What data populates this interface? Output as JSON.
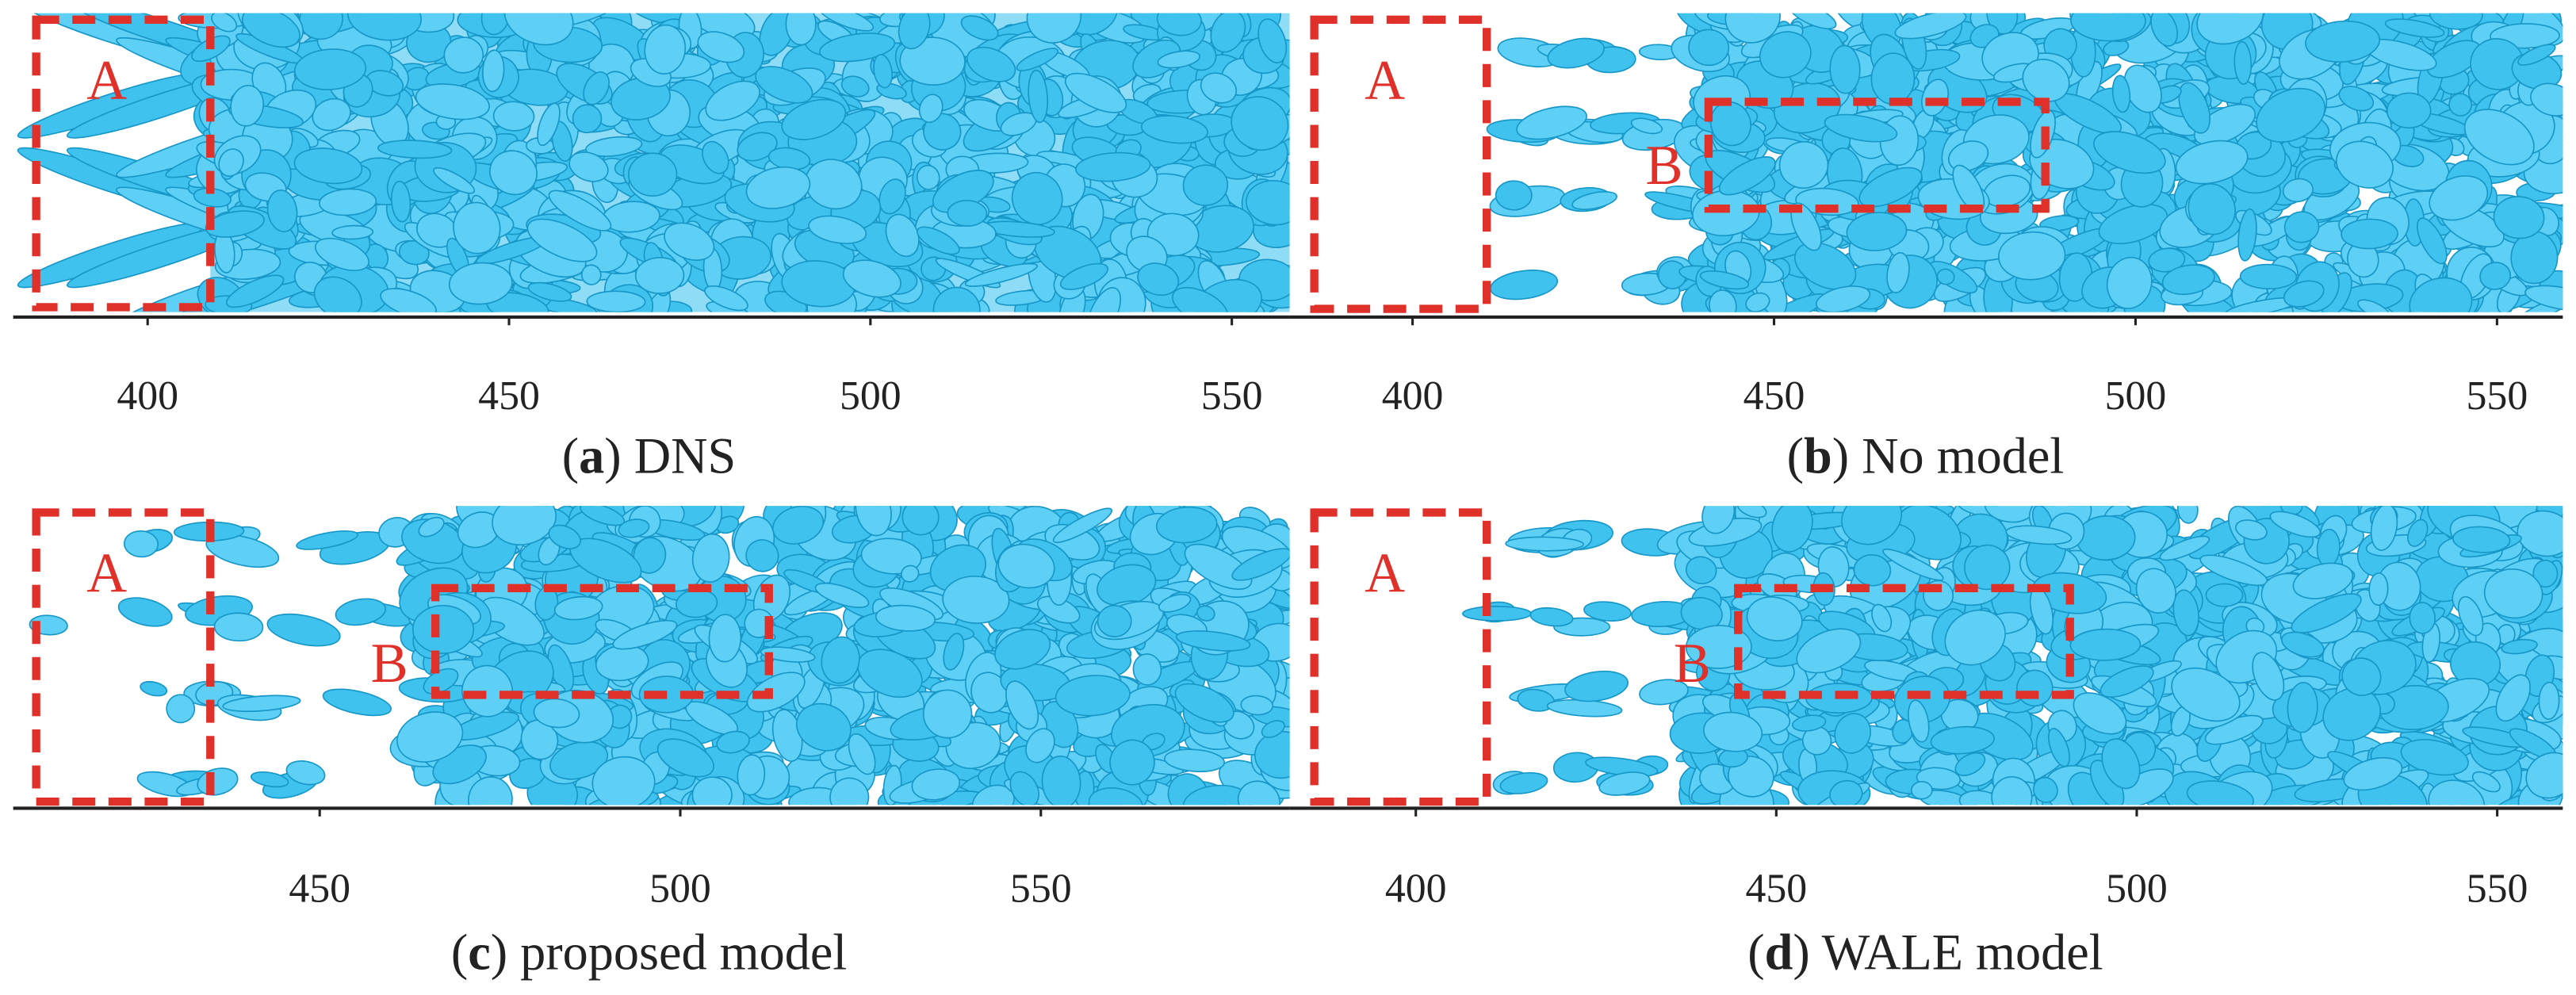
{
  "panels": [
    {
      "caption": {
        "open": "(",
        "letter": "a",
        "close": ") DNS"
      },
      "xticks": [
        400,
        450,
        500,
        550
      ],
      "xlim": [
        381.4,
        558
      ],
      "regions": [
        "A"
      ]
    },
    {
      "caption": {
        "open": "(",
        "letter": "b",
        "close": ") No model"
      },
      "xticks": [
        400,
        450,
        500,
        550
      ],
      "xlim": [
        383,
        559.1
      ],
      "regions": [
        "A",
        "B"
      ]
    },
    {
      "caption": {
        "open": "(",
        "letter": "c",
        "close": ") proposed model"
      },
      "xticks": [
        450,
        500,
        550
      ],
      "xlim": [
        407.5,
        584.5
      ],
      "regions": [
        "A",
        "B"
      ]
    },
    {
      "caption": {
        "open": "(",
        "letter": "d",
        "close": ") WALE model"
      },
      "xticks": [
        400,
        450,
        500,
        550
      ],
      "xlim": [
        382.5,
        559.1
      ],
      "regions": [
        "A",
        "B"
      ]
    }
  ]
}
